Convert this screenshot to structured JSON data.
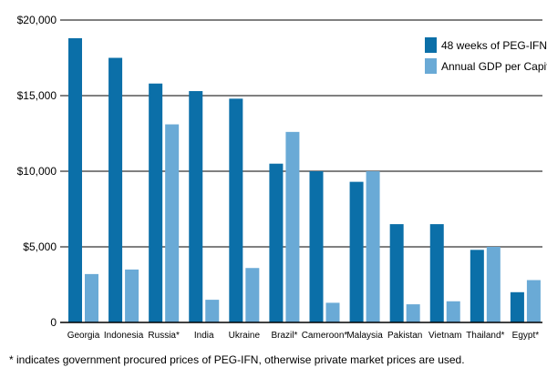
{
  "chart_data": {
    "type": "bar",
    "categories": [
      "Georgia",
      "Indonesia",
      "Russia*",
      "India",
      "Ukraine",
      "Brazil*",
      "Cameroon*",
      "Malaysia",
      "Pakistan",
      "Vietnam",
      "Thailand*",
      "Egypt*"
    ],
    "series": [
      {
        "name": "48 weeks of PEG-IFN",
        "color": "#0b6fa8",
        "values": [
          18800,
          17500,
          15800,
          15300,
          14800,
          10500,
          10000,
          9300,
          6500,
          6500,
          4800,
          2000
        ]
      },
      {
        "name": "Annual GDP per Capita",
        "color": "#6aaad6",
        "values": [
          3200,
          3500,
          13100,
          1500,
          3600,
          12600,
          1300,
          10000,
          1200,
          1400,
          5000,
          2800
        ]
      }
    ],
    "ylim": [
      0,
      20000
    ],
    "yticks": [
      0,
      5000,
      10000,
      15000,
      20000
    ],
    "ytick_labels": [
      "0",
      "$5,000",
      "$10,000",
      "$15,000",
      "$20,000"
    ],
    "grid": true,
    "legend_position": "top-right"
  },
  "footnote": "* indicates government procured prices of PEG-IFN, otherwise private market prices are used."
}
